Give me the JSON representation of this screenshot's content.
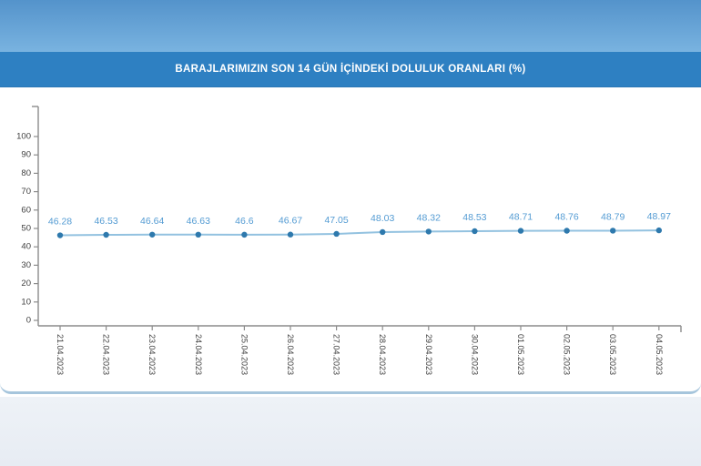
{
  "banner": {
    "title": "BARAJLARIMIZIN SON 14 GÜN İÇİNDEKİ DOLULUK ORANLARI (%)"
  },
  "chart_data": {
    "type": "line",
    "title": "BARAJLARIMIZIN SON 14 GÜN İÇİNDEKİ DOLULUK ORANLARI (%)",
    "x": [
      "21.04.2023",
      "22.04.2023",
      "23.04.2023",
      "24.04.2023",
      "25.04.2023",
      "26.04.2023",
      "27.04.2023",
      "28.04.2023",
      "29.04.2023",
      "30.04.2023",
      "01.05.2023",
      "02.05.2023",
      "03.05.2023",
      "04.05.2023"
    ],
    "values": [
      46.28,
      46.53,
      46.64,
      46.63,
      46.6,
      46.67,
      47.05,
      48.03,
      48.32,
      48.53,
      48.71,
      48.76,
      48.79,
      48.97
    ],
    "point_labels": [
      "46.28",
      "46.53",
      "46.64",
      "46.63",
      "46.6",
      "46.67",
      "47.05",
      "48.03",
      "48.32",
      "48.53",
      "48.71",
      "48.76",
      "48.79",
      "48.97"
    ],
    "ylim": [
      0,
      100
    ],
    "ytick_step": 10,
    "grid": false,
    "legend": "none",
    "x_label_rotation_deg": 90
  },
  "colors": {
    "banner_bg": "#2e80c2",
    "top_gradient_start": "#5493cb",
    "top_gradient_end": "#79b3e0",
    "panel_bg": "#ffffff",
    "panel_border": "#a6c5dc",
    "footer_start": "#eef2f7",
    "footer_end": "#e7ecf3",
    "axis": "#8c8c8c",
    "tick_label": "#3f3f3f",
    "series_line": "#93c2e0",
    "marker": "#2e79ad",
    "data_label": "#539bd3"
  }
}
